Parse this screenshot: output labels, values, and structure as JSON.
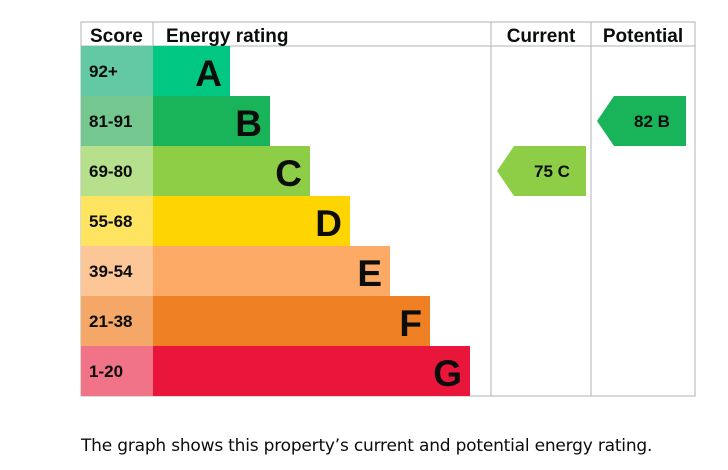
{
  "chart_data": {
    "type": "bar",
    "headers": {
      "score": "Score",
      "rating": "Energy rating",
      "current": "Current",
      "potential": "Potential"
    },
    "bands": [
      {
        "score": "92+",
        "letter": "A",
        "band_color": "#00c781",
        "score_color": "#63c9a5"
      },
      {
        "score": "81-91",
        "letter": "B",
        "band_color": "#19b459",
        "score_color": "#74c78f"
      },
      {
        "score": "69-80",
        "letter": "C",
        "band_color": "#8dce46",
        "score_color": "#b6e08b"
      },
      {
        "score": "55-68",
        "letter": "D",
        "band_color": "#ffd500",
        "score_color": "#ffe462"
      },
      {
        "score": "39-54",
        "letter": "E",
        "band_color": "#fcaa65",
        "score_color": "#fdc696"
      },
      {
        "score": "21-38",
        "letter": "F",
        "band_color": "#ef8023",
        "score_color": "#f4a767"
      },
      {
        "score": "1-20",
        "letter": "G",
        "band_color": "#e9153b",
        "score_color": "#f07387"
      }
    ],
    "current": {
      "value": 75,
      "letter": "C",
      "label": "75  C"
    },
    "potential": {
      "value": 82,
      "letter": "B",
      "label": "82  B"
    }
  },
  "caption": "The graph shows this property’s current and potential energy rating."
}
